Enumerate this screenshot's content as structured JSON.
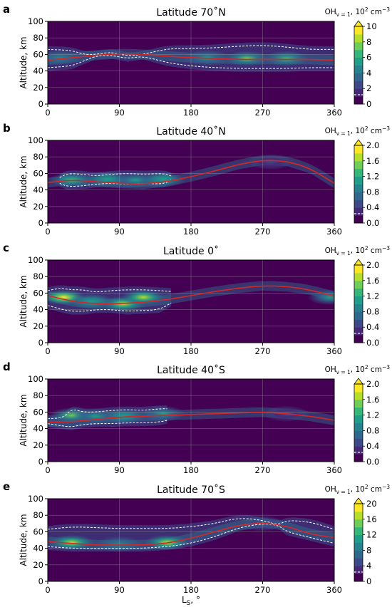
{
  "xlabel_main": "L",
  "xlabel_sub": "S",
  "xlabel_tail": ", °",
  "ylabel": "Altitude, km",
  "colorbar_label_main": "OH",
  "colorbar_label_sub": "ν = 1",
  "colorbar_label_unit": ", 10",
  "colorbar_label_exp": "2",
  "colorbar_label_tail": " cm",
  "colorbar_label_exp2": "−3",
  "x_ticks": [
    "0",
    "90",
    "180",
    "270",
    "360"
  ],
  "y_ticks": [
    "0",
    "20",
    "40",
    "60",
    "80",
    "100"
  ],
  "colors": {
    "background": "#440154",
    "contour_line": "#ffffff",
    "profile_line": "#d62728",
    "grid": "#999999"
  },
  "chart_data": [
    {
      "panel_letter": "a",
      "title": "Latitude 70˚N",
      "type": "heatmap",
      "xlim": [
        0,
        360
      ],
      "ylim": [
        0,
        100
      ],
      "cbar_ticks": [
        "0",
        "2",
        "4",
        "6",
        "8",
        "10"
      ],
      "cbar_max": 10,
      "profile": {
        "x": [
          0,
          30,
          60,
          90,
          120,
          150,
          180,
          210,
          240,
          270,
          300,
          330,
          360
        ],
        "y": [
          53,
          56,
          59,
          61,
          60,
          58,
          56,
          55,
          54,
          54,
          54,
          54,
          53
        ]
      },
      "contour_upper": {
        "x": [
          0,
          30,
          45,
          60,
          80,
          100,
          120,
          150,
          180,
          210,
          240,
          270,
          300,
          330,
          360
        ],
        "y": [
          66,
          65,
          60,
          60,
          63,
          58,
          60,
          67,
          67,
          68,
          70,
          71,
          69,
          66,
          66
        ]
      },
      "contour_lower": {
        "x": [
          0,
          30,
          45,
          60,
          80,
          100,
          120,
          150,
          180,
          210,
          240,
          270,
          300,
          330,
          360
        ],
        "y": [
          44,
          46,
          52,
          58,
          59,
          55,
          58,
          50,
          46,
          44,
          43,
          43,
          43,
          44,
          44
        ]
      },
      "hot_spots": [
        {
          "x": 15,
          "y": 56,
          "level": 0.45
        },
        {
          "x": 250,
          "y": 55,
          "level": 0.75
        },
        {
          "x": 300,
          "y": 55,
          "level": 0.7
        },
        {
          "x": 200,
          "y": 56,
          "level": 0.5
        }
      ]
    },
    {
      "panel_letter": "b",
      "title": "Latitude 40˚N",
      "type": "heatmap",
      "xlim": [
        0,
        360
      ],
      "ylim": [
        0,
        100
      ],
      "cbar_ticks": [
        "0.0",
        "0.4",
        "0.8",
        "1.2",
        "1.6",
        "2.0"
      ],
      "cbar_max": 2.0,
      "profile": {
        "x": [
          0,
          30,
          60,
          90,
          120,
          150,
          180,
          210,
          240,
          270,
          300,
          330,
          360
        ],
        "y": [
          49,
          52,
          50,
          48,
          47,
          50,
          56,
          63,
          71,
          76,
          75,
          66,
          48
        ]
      },
      "contour_upper": {
        "x": [
          15,
          25,
          45,
          60,
          80,
          100,
          120,
          145,
          155
        ],
        "y": [
          55,
          60,
          59,
          57,
          59,
          60,
          59,
          60,
          57
        ]
      },
      "contour_lower": {
        "x": [
          15,
          25,
          45,
          60,
          80,
          100,
          120,
          145,
          155
        ],
        "y": [
          48,
          44,
          45,
          47,
          48,
          47,
          48,
          47,
          52
        ]
      },
      "hot_spots": [
        {
          "x": 30,
          "y": 52,
          "level": 0.7
        },
        {
          "x": 75,
          "y": 53,
          "level": 0.6
        },
        {
          "x": 110,
          "y": 52,
          "level": 0.55
        },
        {
          "x": 145,
          "y": 53,
          "level": 0.6
        },
        {
          "x": 280,
          "y": 74,
          "level": 0.25
        }
      ]
    },
    {
      "panel_letter": "c",
      "title": "Latitude 0˚",
      "type": "heatmap",
      "xlim": [
        0,
        360
      ],
      "ylim": [
        0,
        100
      ],
      "cbar_ticks": [
        "0.0",
        "0.4",
        "0.8",
        "1.2",
        "1.6",
        "2.0"
      ],
      "cbar_max": 2.0,
      "profile": {
        "x": [
          0,
          30,
          60,
          90,
          120,
          150,
          180,
          210,
          240,
          270,
          300,
          330,
          360
        ],
        "y": [
          57,
          50,
          47,
          47,
          49,
          52,
          57,
          62,
          66,
          69,
          68,
          64,
          56
        ]
      },
      "contour_upper": {
        "x": [
          0,
          15,
          30,
          45,
          60,
          80,
          100,
          120,
          140,
          155
        ],
        "y": [
          63,
          66,
          64,
          64,
          61,
          63,
          64,
          64,
          63,
          62
        ]
      },
      "contour_lower": {
        "x": [
          0,
          15,
          30,
          45,
          60,
          80,
          100,
          120,
          140,
          155
        ],
        "y": [
          45,
          41,
          38,
          38,
          40,
          40,
          38,
          39,
          40,
          48
        ]
      },
      "hot_spots": [
        {
          "x": 20,
          "y": 55,
          "level": 0.95
        },
        {
          "x": 95,
          "y": 47,
          "level": 0.9
        },
        {
          "x": 120,
          "y": 55,
          "level": 0.85
        },
        {
          "x": 55,
          "y": 50,
          "level": 0.6
        },
        {
          "x": 355,
          "y": 55,
          "level": 0.5
        }
      ]
    },
    {
      "panel_letter": "d",
      "title": "Latitude 40˚S",
      "type": "heatmap",
      "xlim": [
        0,
        360
      ],
      "ylim": [
        0,
        100
      ],
      "cbar_ticks": [
        "0.0",
        "0.4",
        "0.8",
        "1.2",
        "1.6",
        "2.0"
      ],
      "cbar_max": 2.0,
      "profile": {
        "x": [
          0,
          30,
          60,
          90,
          120,
          150,
          180,
          210,
          240,
          270,
          300,
          330,
          360
        ],
        "y": [
          48,
          48,
          51,
          54,
          55,
          56,
          57,
          58,
          59,
          60,
          58,
          55,
          50
        ]
      },
      "contour_upper": {
        "x": [
          0,
          20,
          30,
          45,
          60,
          80,
          100,
          120,
          140,
          150
        ],
        "y": [
          52,
          53,
          64,
          60,
          60,
          62,
          63,
          62,
          64,
          64
        ]
      },
      "contour_lower": {
        "x": [
          0,
          20,
          30,
          45,
          60,
          80,
          100,
          120,
          140,
          150
        ],
        "y": [
          46,
          43,
          42,
          45,
          46,
          46,
          47,
          47,
          48,
          50
        ]
      },
      "hot_spots": [
        {
          "x": 30,
          "y": 56,
          "level": 0.75
        },
        {
          "x": 95,
          "y": 55,
          "level": 0.6
        },
        {
          "x": 145,
          "y": 58,
          "level": 0.55
        },
        {
          "x": 60,
          "y": 55,
          "level": 0.5
        },
        {
          "x": 300,
          "y": 58,
          "level": 0.25
        }
      ]
    },
    {
      "panel_letter": "e",
      "title": "Latitude 70˚S",
      "type": "heatmap",
      "xlim": [
        0,
        360
      ],
      "ylim": [
        0,
        100
      ],
      "cbar_ticks": [
        "0",
        "4",
        "8",
        "12",
        "16",
        "20"
      ],
      "cbar_max": 20,
      "profile": {
        "x": [
          0,
          30,
          60,
          90,
          120,
          150,
          180,
          210,
          240,
          270,
          300,
          330,
          360
        ],
        "y": [
          48,
          46,
          44,
          44,
          44,
          46,
          52,
          60,
          68,
          71,
          67,
          57,
          53
        ]
      },
      "contour_upper": {
        "x": [
          0,
          30,
          60,
          90,
          120,
          150,
          180,
          210,
          240,
          270,
          290,
          300,
          330,
          360
        ],
        "y": [
          63,
          66,
          65,
          64,
          64,
          64,
          66,
          70,
          77,
          74,
          68,
          74,
          72,
          63
        ]
      },
      "contour_lower": {
        "x": [
          0,
          30,
          60,
          90,
          120,
          150,
          180,
          210,
          240,
          270,
          290,
          300,
          330,
          360
        ],
        "y": [
          42,
          40,
          40,
          40,
          40,
          42,
          46,
          54,
          65,
          70,
          68,
          60,
          53,
          46
        ]
      },
      "hot_spots": [
        {
          "x": 30,
          "y": 47,
          "level": 0.85
        },
        {
          "x": 150,
          "y": 47,
          "level": 0.85
        },
        {
          "x": 90,
          "y": 45,
          "level": 0.45
        },
        {
          "x": 270,
          "y": 70,
          "level": 0.3
        }
      ]
    }
  ]
}
